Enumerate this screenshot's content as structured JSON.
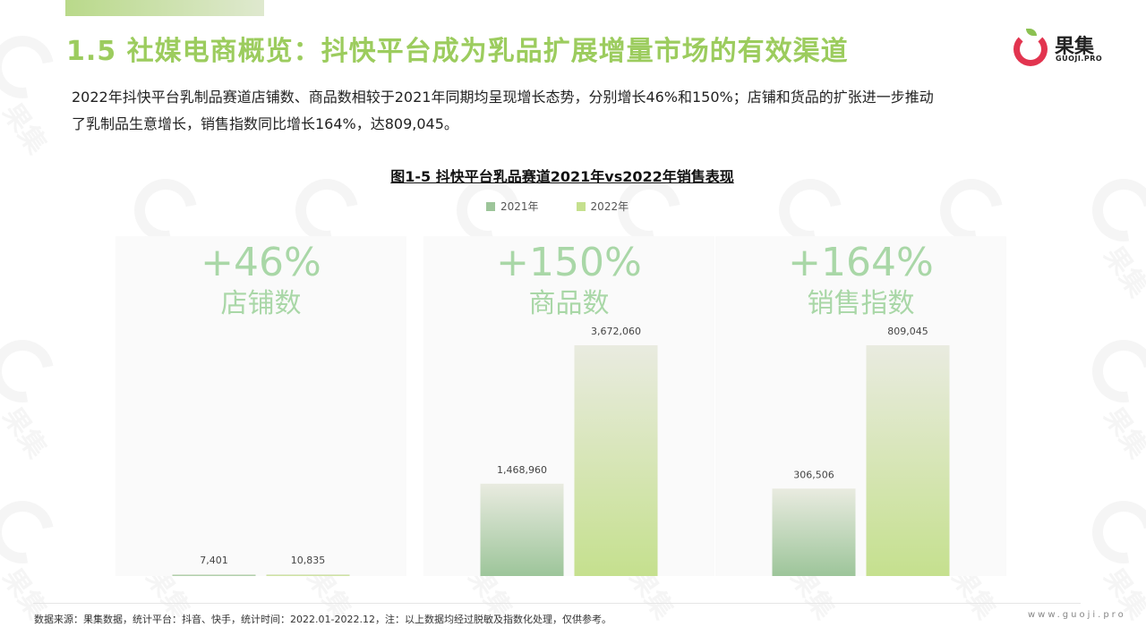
{
  "page": {
    "title": "1.5 社媒电商概览：抖快平台成为乳品扩展增量市场的有效渠道",
    "intro_line1": "2022年抖快平台乳制品赛道店铺数、商品数相较于2021年同期均呈现增长态势，分别增长46%和150%；店铺和货品的扩张进一步推动",
    "intro_line2": "了乳制品生意增长，销售指数同比增长164%，达809,045。",
    "source": "数据来源：果集数据，统计平台：抖音、快手，统计时间：2022.01-2022.12，注：以上数据均经过脱敏及指数化处理，仅供参考。",
    "site": "www.guoji.pro"
  },
  "logo": {
    "name": "果集",
    "sub": "GUOJI.PRO",
    "watermark": "果集"
  },
  "colors": {
    "accent": "#9ccc5e",
    "brand_red": "#e2344f",
    "series_2021": "#9dc59a",
    "series_2022": "#c5e08e",
    "growth_text": "#a9d7a7",
    "panel_bg": "#fafafa"
  },
  "chart_data": {
    "type": "bar",
    "title": "图1-5 抖快平台乳品赛道2021年vs2022年销售表现",
    "legend": [
      "2021年",
      "2022年"
    ],
    "legend_position": "top-center",
    "grid": false,
    "panels": [
      {
        "category": "店铺数",
        "growth": "+46%",
        "values": [
          7401,
          10835
        ],
        "labels": [
          "7,401",
          "10,835"
        ]
      },
      {
        "category": "商品数",
        "growth": "+150%",
        "values": [
          1468960,
          3672060
        ],
        "labels": [
          "1,468,960",
          "3,672,060"
        ]
      },
      {
        "category": "销售指数",
        "growth": "+164%",
        "values": [
          306506,
          809045
        ],
        "labels": [
          "306,506",
          "809,045"
        ]
      }
    ]
  }
}
